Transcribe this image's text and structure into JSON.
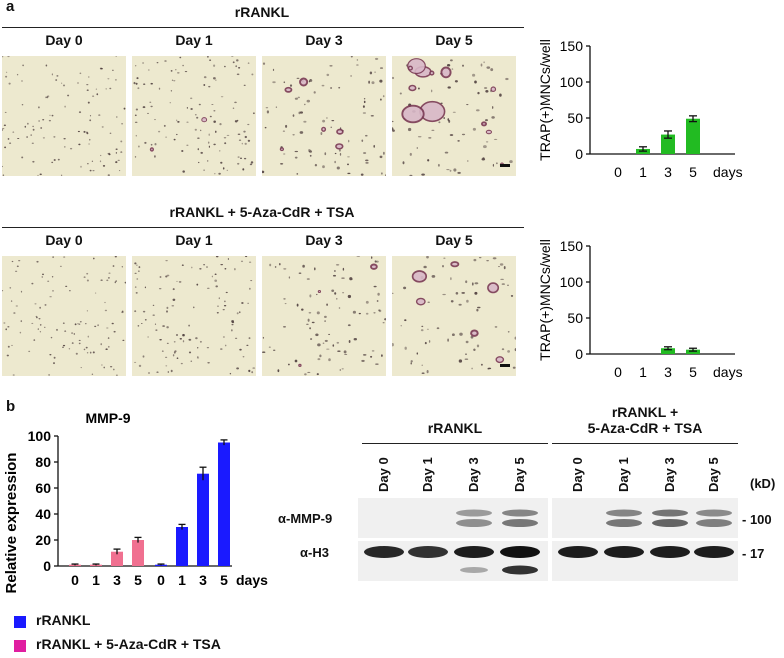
{
  "panel_a": {
    "letter": "a",
    "row1_title": "rRANKL",
    "row2_title": "rRANKL + 5-Aza-CdR + TSA",
    "day_labels": [
      "Day 0",
      "Day 1",
      "Day 3",
      "Day 5"
    ],
    "micro_background": "#ede9cf",
    "micro_cell_color": "#4a3a3a",
    "micro_stain_color": "#7a3a55"
  },
  "panel_b": {
    "letter": "b",
    "western": {
      "group1_title": "rRANKL",
      "group2_title_line1": "rRANKL +",
      "group2_title_line2": "5-Aza-CdR + TSA",
      "lane_labels": [
        "Day 0",
        "Day 1",
        "Day 3",
        "Day 5"
      ],
      "kd_label": "(kD)",
      "rows": [
        {
          "label": "α-MMP-9",
          "marker": "- 100"
        },
        {
          "label": "α-H3",
          "marker": "- 17"
        }
      ],
      "mmp9_intensity": {
        "rRANKL": [
          0,
          0,
          0.55,
          0.7
        ],
        "combo": [
          0,
          0.7,
          0.8,
          0.65
        ]
      },
      "h3_intensity": {
        "rRANKL": [
          0.9,
          0.85,
          0.95,
          1.0
        ],
        "combo": [
          0.95,
          0.95,
          0.95,
          0.95
        ]
      }
    },
    "legend": [
      {
        "label": "rRANKL",
        "color": "#1a1aff"
      },
      {
        "label": "rRANKL + 5-Aza-CdR + TSA",
        "color": "#e01ea0"
      }
    ]
  },
  "chart_data": [
    {
      "type": "bar",
      "categories": [
        "0",
        "1",
        "3",
        "5"
      ],
      "values": [
        0,
        7,
        27,
        49
      ],
      "errors": [
        0,
        3,
        5,
        4
      ],
      "ylabel": "TRAP(+)MNCs/well",
      "xlabel": "days",
      "ylim": [
        0,
        150
      ],
      "yticks": [
        0,
        50,
        100,
        150
      ],
      "color": "#22bb22",
      "grid": false
    },
    {
      "type": "bar",
      "categories": [
        "0",
        "1",
        "3",
        "5"
      ],
      "values": [
        0,
        0,
        8,
        6
      ],
      "errors": [
        0,
        0,
        2,
        2
      ],
      "ylabel": "TRAP(+)MNCs/well",
      "xlabel": "days",
      "ylim": [
        0,
        150
      ],
      "yticks": [
        0,
        50,
        100,
        150
      ],
      "color": "#22bb22",
      "grid": false
    },
    {
      "type": "bar",
      "title": "MMP-9",
      "ylabel": "Relative expression",
      "xlabel": "days",
      "ylim": [
        0,
        100
      ],
      "yticks": [
        0,
        20,
        40,
        60,
        80,
        100
      ],
      "grid": false,
      "groups": [
        {
          "categories": [
            "0",
            "1",
            "3",
            "5"
          ],
          "values": [
            1,
            1,
            11,
            20
          ],
          "errors": [
            0.5,
            0.5,
            2,
            2
          ],
          "color": "#f07090"
        },
        {
          "categories": [
            "0",
            "1",
            "3",
            "5"
          ],
          "values": [
            1,
            30,
            71,
            95
          ],
          "errors": [
            0.5,
            2,
            5,
            2
          ],
          "color": "#1a1aff"
        }
      ]
    }
  ]
}
